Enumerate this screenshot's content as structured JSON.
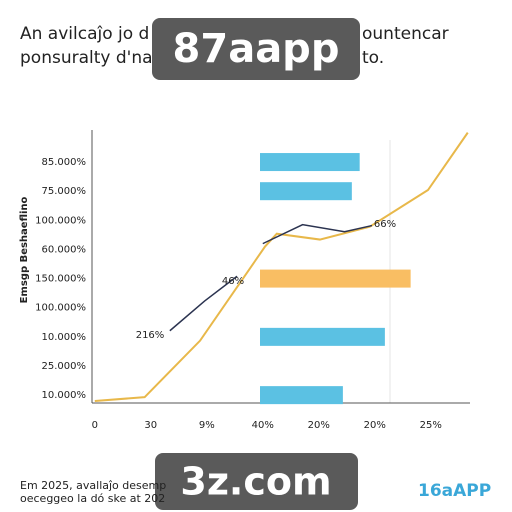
{
  "header": {
    "title_left": "An avilcaĵo jo d",
    "title_right": "ountencar",
    "subtitle_left": "ponsuralty d'na",
    "subtitle_right": "to.",
    "badge": "87aapp"
  },
  "chart_data": {
    "type": "mixed",
    "ylabel": "Emsgp Beshaeflino",
    "xlim": [
      -0.05,
      6.7
    ],
    "ylim": [
      -0.27,
      9.1
    ],
    "xticks": [
      {
        "value": 0,
        "label": "0"
      },
      {
        "value": 1,
        "label": "30"
      },
      {
        "value": 2,
        "label": "9%"
      },
      {
        "value": 3,
        "label": "40%"
      },
      {
        "value": 4,
        "label": "20%"
      },
      {
        "value": 5,
        "label": "20%"
      },
      {
        "value": 6,
        "label": "25%"
      }
    ],
    "yticks": [
      {
        "value": 0,
        "label": "10.000%"
      },
      {
        "value": 1,
        "label": "25.000%"
      },
      {
        "value": 2,
        "label": "10.000%"
      },
      {
        "value": 3,
        "label": "100.000%"
      },
      {
        "value": 4,
        "label": "150.000%"
      },
      {
        "value": 5,
        "label": "60.000%"
      },
      {
        "value": 6,
        "label": "100.000%"
      },
      {
        "value": 7,
        "label": "75.000%"
      },
      {
        "value": 8,
        "label": "85.000%"
      }
    ],
    "bars": {
      "start": 2.95,
      "y": [
        8,
        7,
        4,
        2,
        0
      ],
      "values": [
        4.73,
        4.59,
        5.64,
        5.18,
        4.43
      ],
      "colors": [
        "#5bc1e3",
        "#5bc1e3",
        "#f9be63",
        "#5bc1e3",
        "#5bc1e3"
      ]
    },
    "series": [
      {
        "color": "#e8b84a",
        "x": [
          0,
          0.89,
          1.88,
          3.04,
          3.25,
          4.02,
          4.91,
          5.95,
          6.66
        ],
        "values": [
          -0.2,
          -0.07,
          1.87,
          5.1,
          5.54,
          5.34,
          5.78,
          7.04,
          9.01
        ]
      },
      {
        "color": "#2b3350",
        "x": [
          1.34,
          1.96,
          2.54,
          null,
          3.0,
          3.71,
          4.46,
          4.95
        ],
        "values": [
          2.21,
          3.23,
          4.08,
          null,
          5.2,
          5.85,
          5.61,
          5.82
        ]
      }
    ],
    "annotations": [
      "216%",
      "46%",
      "66%"
    ]
  },
  "footer": {
    "line1": "Em 2025, avallaĵo desemp",
    "line2": "oeceggeo la dó ske at 202",
    "badge": "3z.com",
    "logo": "16aAPP"
  }
}
